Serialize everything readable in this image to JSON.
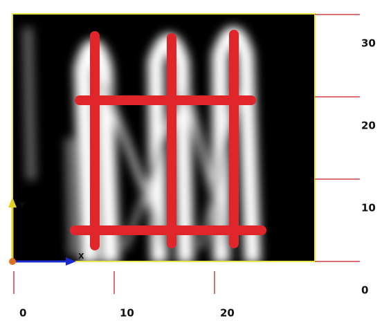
{
  "viewer": {
    "x_axis": {
      "ticks": [
        0,
        10,
        20
      ]
    },
    "y_axis": {
      "ticks": [
        0,
        10,
        20,
        30
      ]
    },
    "gizmo": {
      "x": "X",
      "y": "Y"
    }
  }
}
